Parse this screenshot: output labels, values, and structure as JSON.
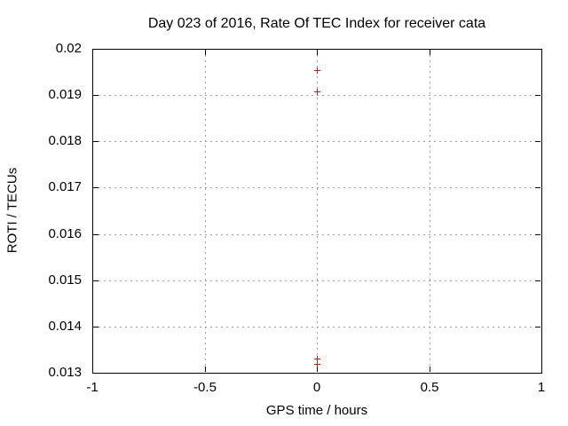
{
  "chart_data": {
    "type": "scatter",
    "title": "Day 023 of 2016, Rate Of TEC Index for receiver cata",
    "xlabel": "GPS time / hours",
    "ylabel": "ROTI / TECUs",
    "xlim": [
      -1,
      1
    ],
    "ylim": [
      0.013,
      0.02
    ],
    "xticks": [
      -1,
      -0.5,
      0,
      0.5,
      1
    ],
    "xtick_labels": [
      "-1",
      "-0.5",
      "0",
      "0.5",
      "1"
    ],
    "yticks": [
      0.013,
      0.014,
      0.015,
      0.016,
      0.017,
      0.018,
      0.019,
      0.02
    ],
    "ytick_labels": [
      "0.013",
      "0.014",
      "0.015",
      "0.016",
      "0.017",
      "0.018",
      "0.019",
      "0.02"
    ],
    "grid": true,
    "legend": "none",
    "marker": "plus",
    "series": [
      {
        "name": "ROTI",
        "points": [
          [
            0,
            0.01954
          ],
          [
            0,
            0.01908
          ],
          [
            0,
            0.01331
          ],
          [
            0,
            0.01319
          ]
        ]
      }
    ]
  },
  "colors": {
    "background": "#ffffff",
    "axis": "#000000",
    "grid": "#9c9c9c",
    "text": "#000000",
    "marker": "#ff0000"
  }
}
